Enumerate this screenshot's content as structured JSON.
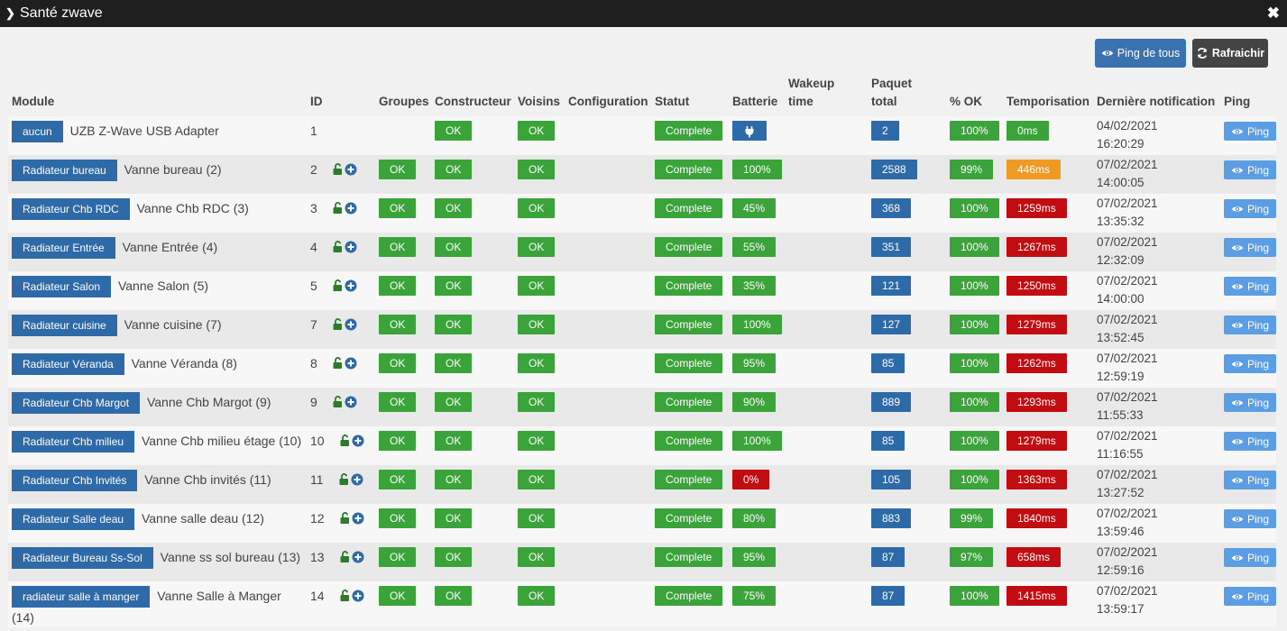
{
  "window": {
    "title": "Santé zwave"
  },
  "toolbar": {
    "ping_all_label": "Ping de tous",
    "refresh_label": "Rafraichir"
  },
  "columns": [
    "Module",
    "ID",
    "Groupes",
    "Constructeur",
    "Voisins",
    "Configuration",
    "Statut",
    "Batterie",
    "Wakeup time",
    "Paquet total",
    "% OK",
    "Temporisation",
    "Dernière notification",
    "Ping"
  ],
  "colors": {
    "green": "#3aa339",
    "blue": "#2f6aa8",
    "red": "#c10d11",
    "orange": "#ef9a22",
    "light_blue": "#5b9ee3"
  },
  "rows": [
    {
      "object": "aucun",
      "name": "UZB Z-Wave USB Adapter",
      "id": "1",
      "groups": "",
      "manufacturer": "OK",
      "neighbors": "OK",
      "status": "Complete",
      "battery": "plug-icon",
      "packets": "2",
      "ok_pct": "100%",
      "timing": "0ms",
      "timing_color": "green",
      "notif_date": "04/02/2021",
      "notif_time": "16:20:29",
      "ping": "Ping"
    },
    {
      "object": "Radiateur bureau",
      "name": "Vanne bureau (2)",
      "id": "2",
      "groups": "OK",
      "manufacturer": "OK",
      "neighbors": "OK",
      "status": "Complete",
      "battery": "100%",
      "battery_color": "green",
      "packets": "2588",
      "ok_pct": "99%",
      "timing": "446ms",
      "timing_color": "orange",
      "notif_date": "07/02/2021",
      "notif_time": "14:00:05",
      "ping": "Ping"
    },
    {
      "object": "Radiateur Chb RDC",
      "name": "Vanne Chb RDC (3)",
      "id": "3",
      "groups": "OK",
      "manufacturer": "OK",
      "neighbors": "OK",
      "status": "Complete",
      "battery": "45%",
      "battery_color": "green",
      "packets": "368",
      "ok_pct": "100%",
      "timing": "1259ms",
      "timing_color": "red",
      "notif_date": "07/02/2021",
      "notif_time": "13:35:32",
      "ping": "Ping"
    },
    {
      "object": "Radiateur Entrée",
      "name": "Vanne Entrée (4)",
      "id": "4",
      "groups": "OK",
      "manufacturer": "OK",
      "neighbors": "OK",
      "status": "Complete",
      "battery": "55%",
      "battery_color": "green",
      "packets": "351",
      "ok_pct": "100%",
      "timing": "1267ms",
      "timing_color": "red",
      "notif_date": "07/02/2021",
      "notif_time": "12:32:09",
      "ping": "Ping"
    },
    {
      "object": "Radiateur Salon",
      "name": "Vanne Salon (5)",
      "id": "5",
      "groups": "OK",
      "manufacturer": "OK",
      "neighbors": "OK",
      "status": "Complete",
      "battery": "35%",
      "battery_color": "green",
      "packets": "121",
      "ok_pct": "100%",
      "timing": "1250ms",
      "timing_color": "red",
      "notif_date": "07/02/2021",
      "notif_time": "14:00:00",
      "ping": "Ping"
    },
    {
      "object": "Radiateur cuisine",
      "name": "Vanne cuisine (7)",
      "id": "7",
      "groups": "OK",
      "manufacturer": "OK",
      "neighbors": "OK",
      "status": "Complete",
      "battery": "100%",
      "battery_color": "green",
      "packets": "127",
      "ok_pct": "100%",
      "timing": "1279ms",
      "timing_color": "red",
      "notif_date": "07/02/2021",
      "notif_time": "13:52:45",
      "ping": "Ping"
    },
    {
      "object": "Radiateur Véranda",
      "name": "Vanne Véranda (8)",
      "id": "8",
      "groups": "OK",
      "manufacturer": "OK",
      "neighbors": "OK",
      "status": "Complete",
      "battery": "95%",
      "battery_color": "green",
      "packets": "85",
      "ok_pct": "100%",
      "timing": "1262ms",
      "timing_color": "red",
      "notif_date": "07/02/2021",
      "notif_time": "12:59:19",
      "ping": "Ping"
    },
    {
      "object": "Radiateur Chb Margot",
      "name": "Vanne Chb Margot (9)",
      "id": "9",
      "groups": "OK",
      "manufacturer": "OK",
      "neighbors": "OK",
      "status": "Complete",
      "battery": "90%",
      "battery_color": "green",
      "packets": "889",
      "ok_pct": "100%",
      "timing": "1293ms",
      "timing_color": "red",
      "notif_date": "07/02/2021",
      "notif_time": "11:55:33",
      "ping": "Ping"
    },
    {
      "object": "Radiateur Chb milieu",
      "name": "Vanne Chb milieu étage (10)",
      "id": "10",
      "groups": "OK",
      "manufacturer": "OK",
      "neighbors": "OK",
      "status": "Complete",
      "battery": "100%",
      "battery_color": "green",
      "packets": "85",
      "ok_pct": "100%",
      "timing": "1279ms",
      "timing_color": "red",
      "notif_date": "07/02/2021",
      "notif_time": "11:16:55",
      "ping": "Ping"
    },
    {
      "object": "Radiateur Chb Invités",
      "name": "Vanne Chb invités (11)",
      "id": "11",
      "groups": "OK",
      "manufacturer": "OK",
      "neighbors": "OK",
      "status": "Complete",
      "battery": "0%",
      "battery_color": "red",
      "packets": "105",
      "ok_pct": "100%",
      "timing": "1363ms",
      "timing_color": "red",
      "notif_date": "07/02/2021",
      "notif_time": "13:27:52",
      "ping": "Ping"
    },
    {
      "object": "Radiateur Salle deau",
      "name": "Vanne salle deau (12)",
      "id": "12",
      "groups": "OK",
      "manufacturer": "OK",
      "neighbors": "OK",
      "status": "Complete",
      "battery": "80%",
      "battery_color": "green",
      "packets": "883",
      "ok_pct": "99%",
      "timing": "1840ms",
      "timing_color": "red",
      "notif_date": "07/02/2021",
      "notif_time": "13:59:46",
      "ping": "Ping"
    },
    {
      "object": "Radiateur Bureau Ss-Sol",
      "name": "Vanne ss sol bureau (13)",
      "id": "13",
      "groups": "OK",
      "manufacturer": "OK",
      "neighbors": "OK",
      "status": "Complete",
      "battery": "95%",
      "battery_color": "green",
      "packets": "87",
      "ok_pct": "97%",
      "timing": "658ms",
      "timing_color": "red",
      "notif_date": "07/02/2021",
      "notif_time": "12:59:16",
      "ping": "Ping"
    },
    {
      "object": "radiateur salle à manger",
      "name": "Vanne Salle à Manger (14)",
      "id": "14",
      "groups": "OK",
      "manufacturer": "OK",
      "neighbors": "OK",
      "status": "Complete",
      "battery": "75%",
      "battery_color": "green",
      "packets": "87",
      "ok_pct": "100%",
      "timing": "1415ms",
      "timing_color": "red",
      "notif_date": "07/02/2021",
      "notif_time": "13:59:17",
      "ping": "Ping"
    }
  ]
}
